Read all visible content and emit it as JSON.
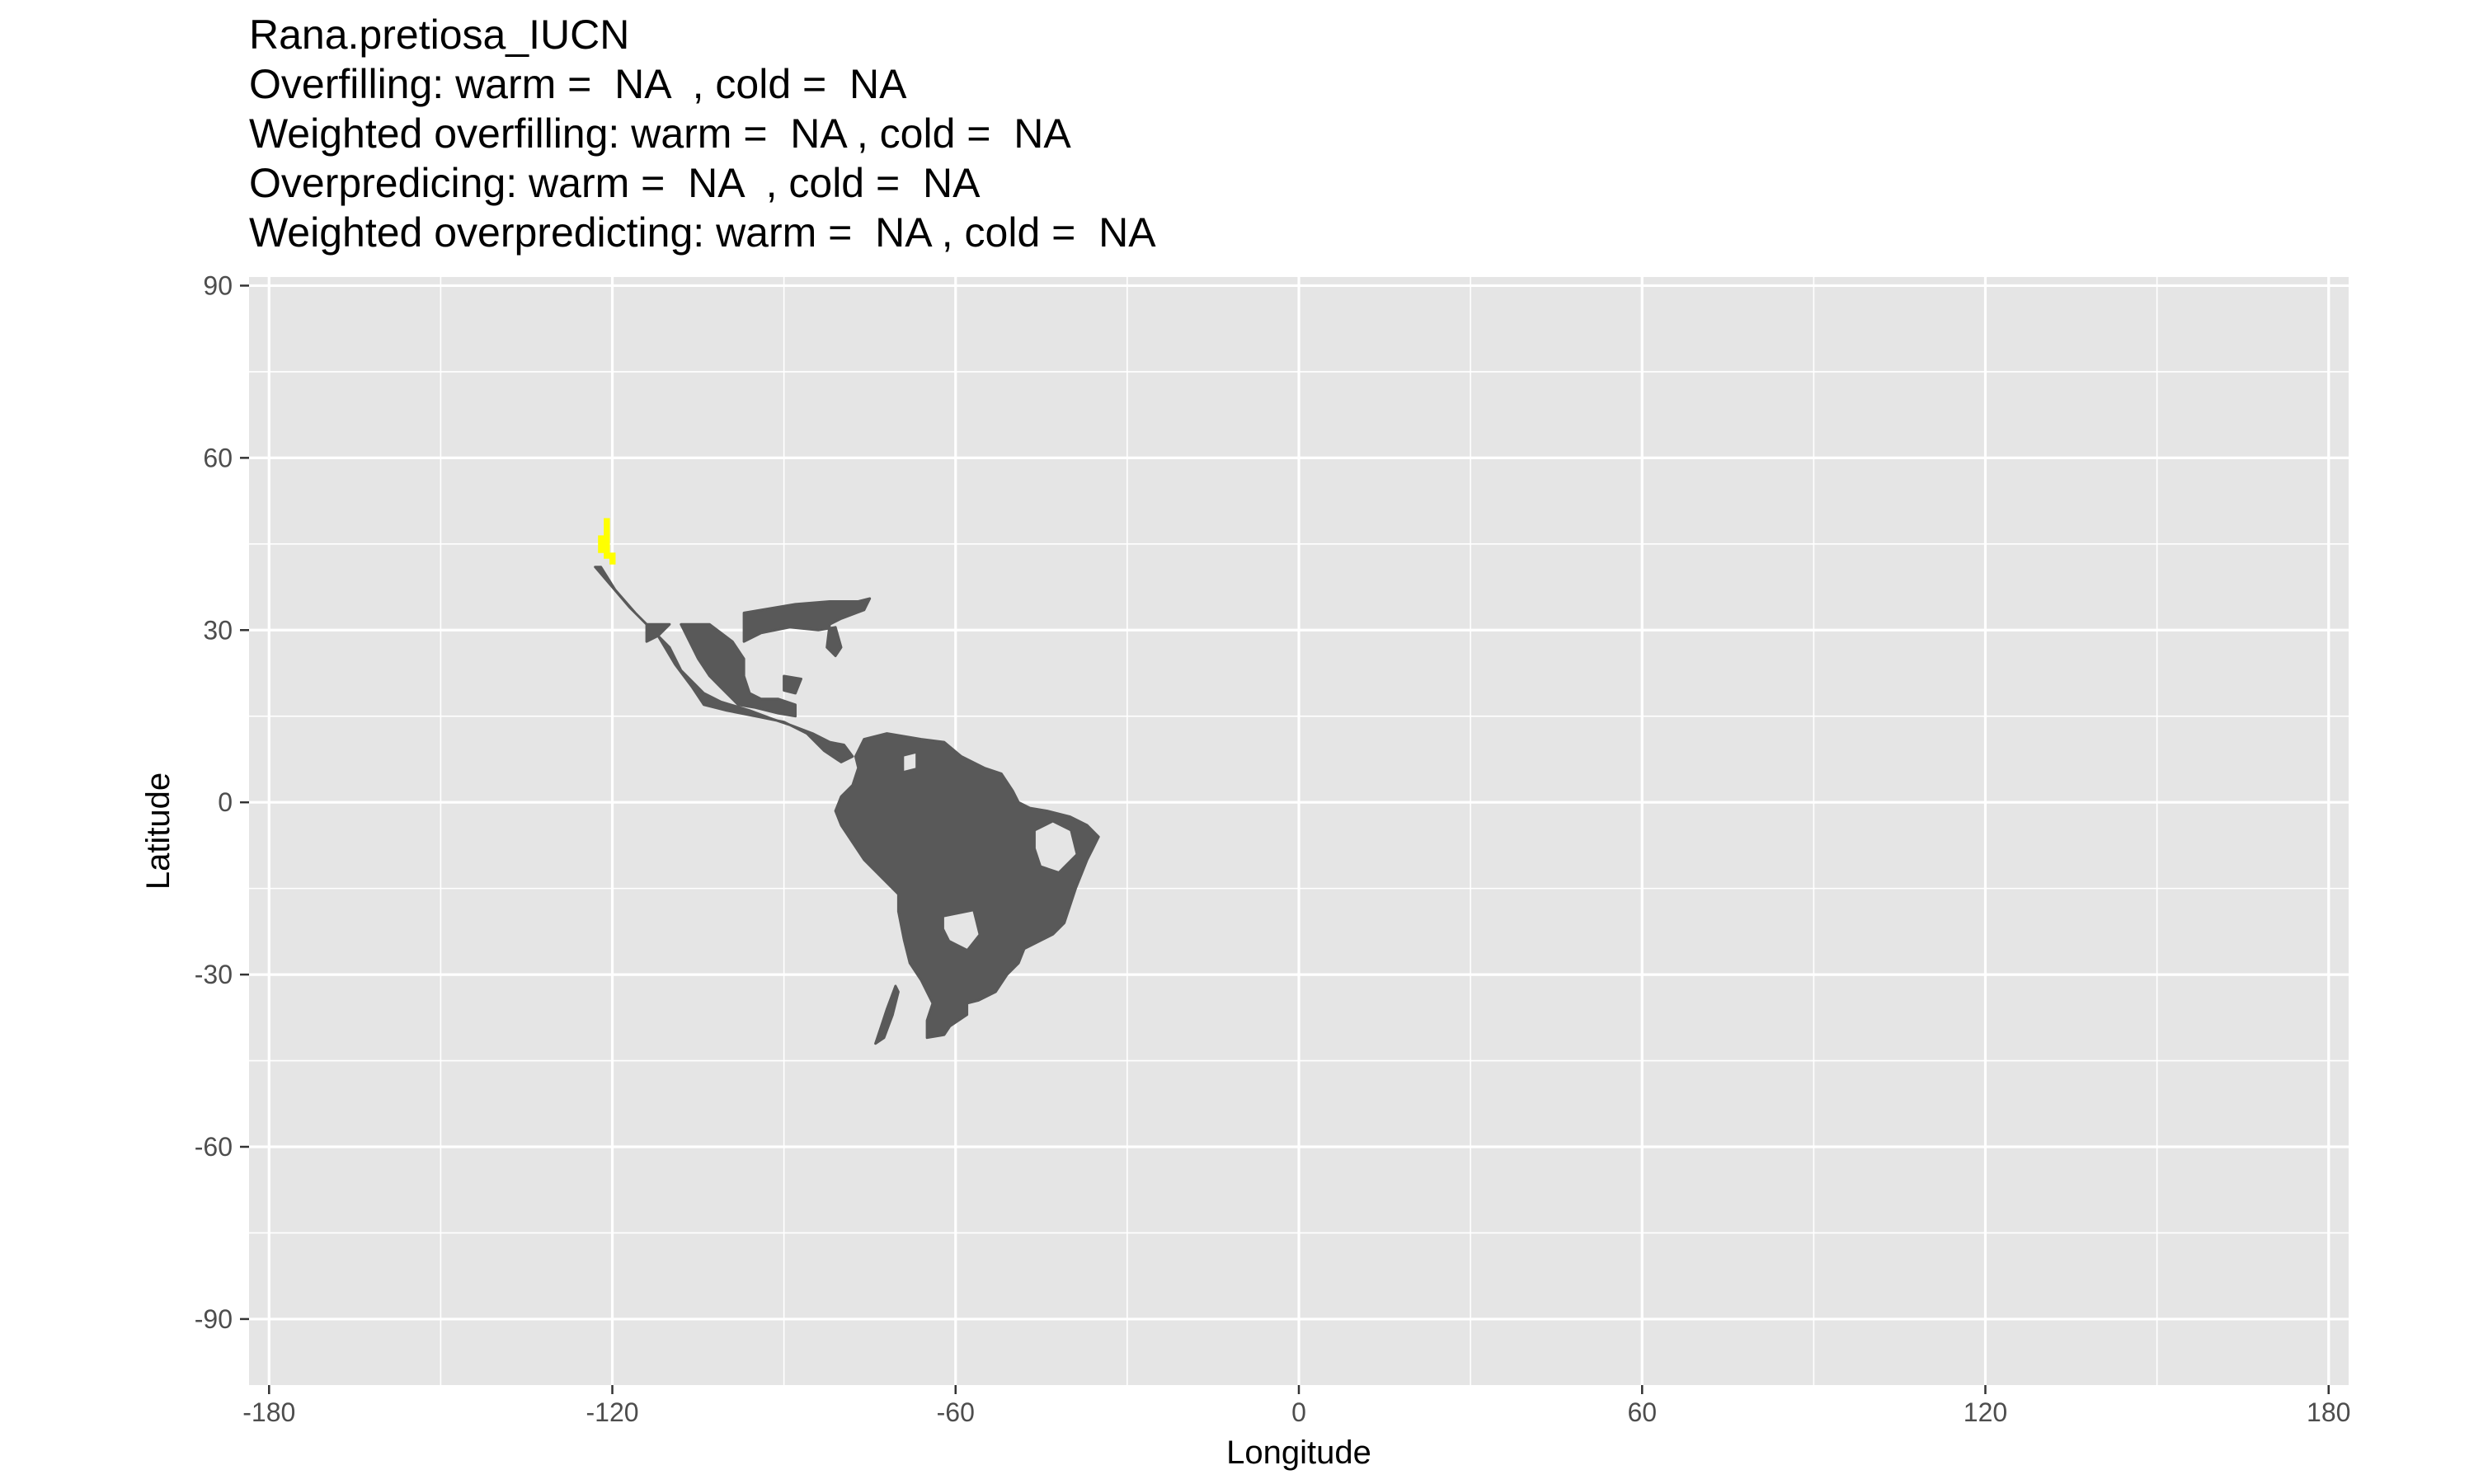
{
  "title_lines": [
    "Rana.pretiosa_IUCN",
    "Overfilling: warm =  NA  , cold =  NA",
    "Weighted overfilling: warm =  NA , cold =  NA",
    "Overpredicing: warm =  NA  , cold =  NA",
    "Weighted overpredicting: warm =  NA , cold =  NA"
  ],
  "chart_data": {
    "type": "heatmap",
    "xlabel": "Longitude",
    "ylabel": "Latitude",
    "xlim": [
      -183.5,
      183.5
    ],
    "ylim": [
      -101.5,
      91.5
    ],
    "x_ticks": [
      -180,
      -120,
      -60,
      0,
      60,
      120,
      180
    ],
    "x_tick_labels": [
      "-180",
      "-120",
      "-60",
      "0",
      "60",
      "120",
      "180"
    ],
    "y_ticks": [
      90,
      60,
      30,
      0,
      -30,
      -60,
      -90
    ],
    "y_tick_labels": [
      "90",
      "60",
      "30",
      "0",
      "-30",
      "-60",
      "-90"
    ],
    "grid": true,
    "background_color": "#e5e5e5",
    "grid_color": "#ffffff",
    "range_color": "#595959",
    "highlight_color": "#ffff00",
    "range_cell_degrees": 1,
    "highlight_cells": [
      [
        -121,
        49
      ],
      [
        -121,
        48
      ],
      [
        -121,
        47
      ],
      [
        -122,
        46
      ],
      [
        -121,
        46
      ],
      [
        -122,
        45
      ],
      [
        -121,
        45
      ],
      [
        -122,
        44
      ],
      [
        -121,
        44
      ],
      [
        -120,
        43
      ],
      [
        -121,
        43
      ],
      [
        -120,
        42
      ]
    ],
    "range_polygons": [
      [
        [
          -122,
          41
        ],
        [
          -119.5,
          37
        ],
        [
          -116,
          33
        ],
        [
          -112,
          29
        ],
        [
          -109,
          24
        ],
        [
          -106,
          20
        ],
        [
          -104,
          17
        ],
        [
          -100,
          16
        ],
        [
          -95,
          15
        ],
        [
          -90,
          14
        ],
        [
          -86,
          12
        ],
        [
          -83,
          9
        ],
        [
          -80,
          7
        ],
        [
          -78,
          8
        ],
        [
          -79.5,
          10
        ],
        [
          -82,
          10.5
        ],
        [
          -85,
          12
        ],
        [
          -89,
          13.5
        ],
        [
          -92,
          14.5
        ],
        [
          -96,
          16
        ],
        [
          -101,
          17.5
        ],
        [
          -104,
          19
        ],
        [
          -106,
          21
        ],
        [
          -108,
          23
        ],
        [
          -110,
          27
        ],
        [
          -113,
          30
        ],
        [
          -117,
          34
        ],
        [
          -120,
          37.5
        ],
        [
          -123,
          41
        ]
      ],
      [
        [
          -108,
          31
        ],
        [
          -103,
          31
        ],
        [
          -99,
          28
        ],
        [
          -97,
          25
        ],
        [
          -97,
          22
        ],
        [
          -96,
          19
        ],
        [
          -94,
          18
        ],
        [
          -91,
          18
        ],
        [
          -88,
          17
        ],
        [
          -88,
          15
        ],
        [
          -91,
          15.5
        ],
        [
          -95,
          16.5
        ],
        [
          -98,
          17
        ],
        [
          -101,
          20
        ],
        [
          -103,
          22
        ],
        [
          -105,
          25
        ],
        [
          -106.5,
          28
        ]
      ],
      [
        [
          -97,
          33
        ],
        [
          -88,
          34.5
        ],
        [
          -82,
          35
        ],
        [
          -77,
          35
        ],
        [
          -75,
          35.5
        ],
        [
          -76,
          33.5
        ],
        [
          -80,
          32
        ],
        [
          -82,
          31
        ],
        [
          -82.5,
          27
        ],
        [
          -81,
          25.5
        ],
        [
          -80,
          27
        ],
        [
          -81,
          30.5
        ],
        [
          -84,
          30
        ],
        [
          -89,
          30.5
        ],
        [
          -94,
          29.5
        ],
        [
          -97,
          28
        ]
      ],
      [
        [
          -114,
          31
        ],
        [
          -110,
          31
        ],
        [
          -112,
          29
        ],
        [
          -114,
          28
        ]
      ],
      [
        [
          -90,
          22
        ],
        [
          -87,
          21.5
        ],
        [
          -88,
          19
        ],
        [
          -90,
          19.5
        ]
      ],
      [
        [
          -76,
          11
        ],
        [
          -72,
          12
        ],
        [
          -66,
          11
        ],
        [
          -62,
          10.5
        ],
        [
          -59,
          8
        ],
        [
          -55,
          6
        ],
        [
          -52,
          5
        ],
        [
          -50,
          2
        ],
        [
          -49,
          0
        ],
        [
          -47,
          -1
        ],
        [
          -44,
          -1.5
        ],
        [
          -40,
          -2.5
        ],
        [
          -37,
          -4
        ],
        [
          -35,
          -6
        ],
        [
          -36,
          -8
        ],
        [
          -37,
          -10
        ],
        [
          -38,
          -12.5
        ],
        [
          -39,
          -15
        ],
        [
          -40,
          -18
        ],
        [
          -41,
          -21
        ],
        [
          -43,
          -23
        ],
        [
          -45,
          -24
        ],
        [
          -48,
          -25.5
        ],
        [
          -49,
          -28
        ],
        [
          -51,
          -30
        ],
        [
          -53,
          -33
        ],
        [
          -56,
          -34.5
        ],
        [
          -58,
          -35
        ],
        [
          -58,
          -37
        ],
        [
          -61,
          -39
        ],
        [
          -62,
          -40.5
        ],
        [
          -65,
          -41
        ],
        [
          -65,
          -38
        ],
        [
          -64,
          -35
        ],
        [
          -66,
          -31
        ],
        [
          -68,
          -28
        ],
        [
          -69,
          -24
        ],
        [
          -70,
          -19
        ],
        [
          -70,
          -16
        ],
        [
          -73,
          -13
        ],
        [
          -76,
          -10
        ],
        [
          -78,
          -7
        ],
        [
          -80,
          -4
        ],
        [
          -81,
          -1.5
        ],
        [
          -80,
          1
        ],
        [
          -78,
          3
        ],
        [
          -77,
          6
        ],
        [
          -77.5,
          8
        ]
      ],
      [
        [
          -70.5,
          -32
        ],
        [
          -72,
          -36
        ],
        [
          -73,
          -39
        ],
        [
          -74,
          -42
        ],
        [
          -72.5,
          -41
        ],
        [
          -71,
          -37
        ],
        [
          -70,
          -33
        ]
      ]
    ],
    "gap_polygons": [
      [
        [
          -69,
          8
        ],
        [
          -67,
          8.5
        ],
        [
          -67,
          6
        ],
        [
          -69,
          5.5
        ]
      ],
      [
        [
          -62,
          -20
        ],
        [
          -57,
          -19
        ],
        [
          -56,
          -23
        ],
        [
          -58,
          -25.5
        ],
        [
          -61,
          -24
        ],
        [
          -62,
          -22
        ]
      ],
      [
        [
          -46,
          -5
        ],
        [
          -43,
          -3.5
        ],
        [
          -40,
          -5
        ],
        [
          -39,
          -9
        ],
        [
          -42,
          -12
        ],
        [
          -45,
          -11
        ],
        [
          -46,
          -8
        ]
      ]
    ]
  }
}
